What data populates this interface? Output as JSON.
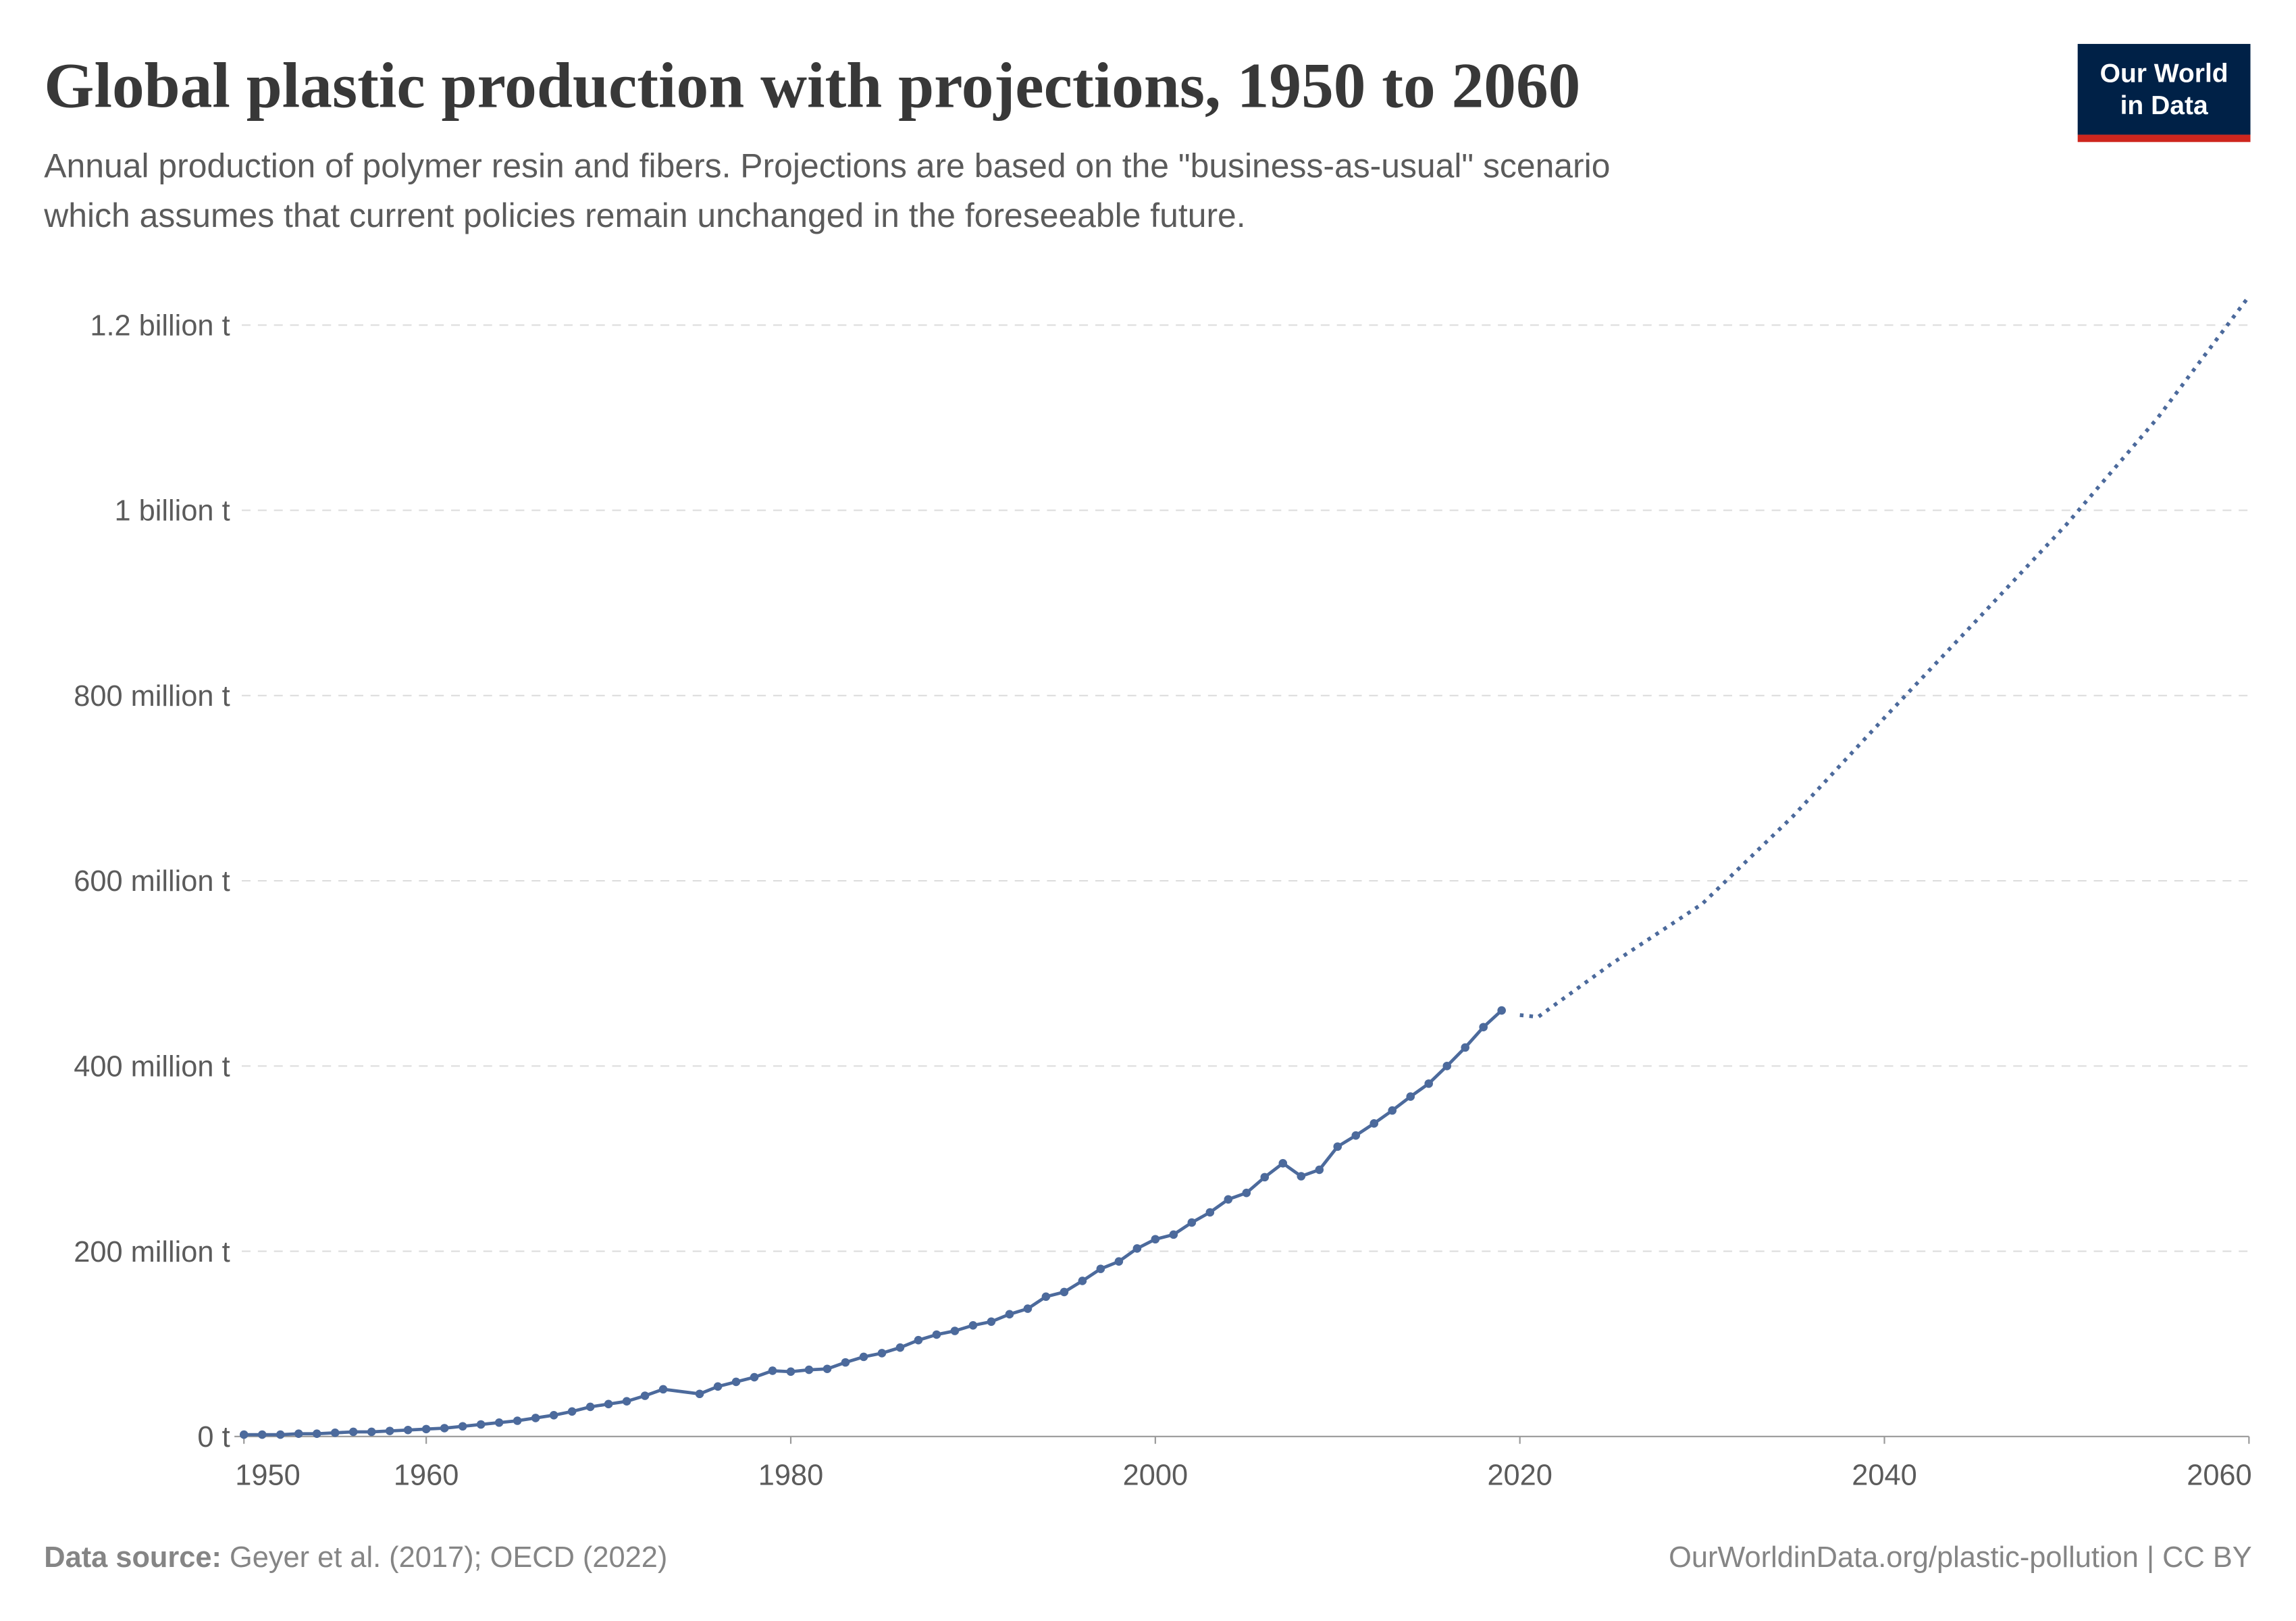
{
  "chart_data": {
    "type": "line",
    "title": "Global plastic production with projections, 1950 to 2060",
    "subtitle": [
      "Annual production of polymer resin and fibers. Projections are based on the \"business-as-usual\" scenario",
      "which assumes that current policies remain unchanged in the foreseeable future."
    ],
    "logo": [
      "Our World",
      "in Data"
    ],
    "source_label": "Data source:",
    "source": "Geyer et al. (2017); OECD (2022)",
    "credit": "OurWorldinData.org/plastic-pollution | CC BY",
    "series": [
      {
        "color": "#4c6a9c",
        "style": "solid",
        "markers": true,
        "x": [
          1950,
          1951,
          1952,
          1953,
          1954,
          1955,
          1956,
          1957,
          1958,
          1959,
          1960,
          1961,
          1962,
          1963,
          1964,
          1965,
          1966,
          1967,
          1968,
          1969,
          1970,
          1971,
          1972,
          1973,
          1975,
          1976,
          1977,
          1978,
          1979,
          1980,
          1981,
          1982,
          1983,
          1984,
          1985,
          1986,
          1987,
          1988,
          1989,
          1990,
          1991,
          1992,
          1993,
          1994,
          1995,
          1996,
          1997,
          1998,
          1999,
          2000,
          2001,
          2002,
          2003,
          2004,
          2005,
          2006,
          2007,
          2008,
          2009,
          2010,
          2011,
          2012,
          2013,
          2014,
          2015,
          2016,
          2017,
          2018,
          2019
        ],
        "values": [
          2000000,
          2000000,
          2000000,
          3000000,
          3000000,
          4000000,
          5000000,
          5000000,
          6000000,
          7000000,
          8000000,
          9000000,
          11000000,
          13000000,
          15000000,
          17000000,
          20000000,
          23000000,
          27000000,
          32000000,
          35000000,
          38000000,
          44000000,
          51000000,
          46000000,
          54000000,
          59000000,
          64000000,
          71000000,
          70000000,
          72000000,
          73000000,
          80000000,
          86000000,
          90000000,
          96000000,
          104000000,
          110000000,
          114000000,
          120000000,
          124000000,
          132000000,
          138000000,
          151000000,
          156000000,
          168000000,
          181000000,
          189000000,
          203000000,
          213000000,
          218000000,
          231000000,
          242000000,
          256000000,
          263000000,
          280000000,
          295000000,
          281000000,
          288000000,
          313000000,
          325000000,
          338000000,
          352000000,
          367000000,
          381000000,
          400000000,
          420000000,
          442000000,
          460000000
        ]
      },
      {
        "color": "#4c6a9c",
        "style": "dotted",
        "markers": false,
        "x": [
          2020,
          2021,
          2025,
          2030,
          2035,
          2040,
          2045,
          2050,
          2055,
          2060
        ],
        "values": [
          455000000,
          453000000,
          510000000,
          575000000,
          670000000,
          776000000,
          880000000,
          985000000,
          1100000000,
          1231000000
        ]
      }
    ],
    "xlim": [
      1950,
      2060
    ],
    "xticks": [
      1950,
      1960,
      1980,
      2000,
      2020,
      2040,
      2060
    ],
    "ylim": [
      0,
      1200000000
    ],
    "yticks": [
      {
        "value": 0,
        "label": "0 t"
      },
      {
        "value": 200000000,
        "label": "200 million t"
      },
      {
        "value": 400000000,
        "label": "400 million t"
      },
      {
        "value": 600000000,
        "label": "600 million t"
      },
      {
        "value": 800000000,
        "label": "800 million t"
      },
      {
        "value": 1000000000,
        "label": "1 billion t"
      },
      {
        "value": 1200000000,
        "label": "1.2 billion t"
      }
    ],
    "grid": true
  }
}
